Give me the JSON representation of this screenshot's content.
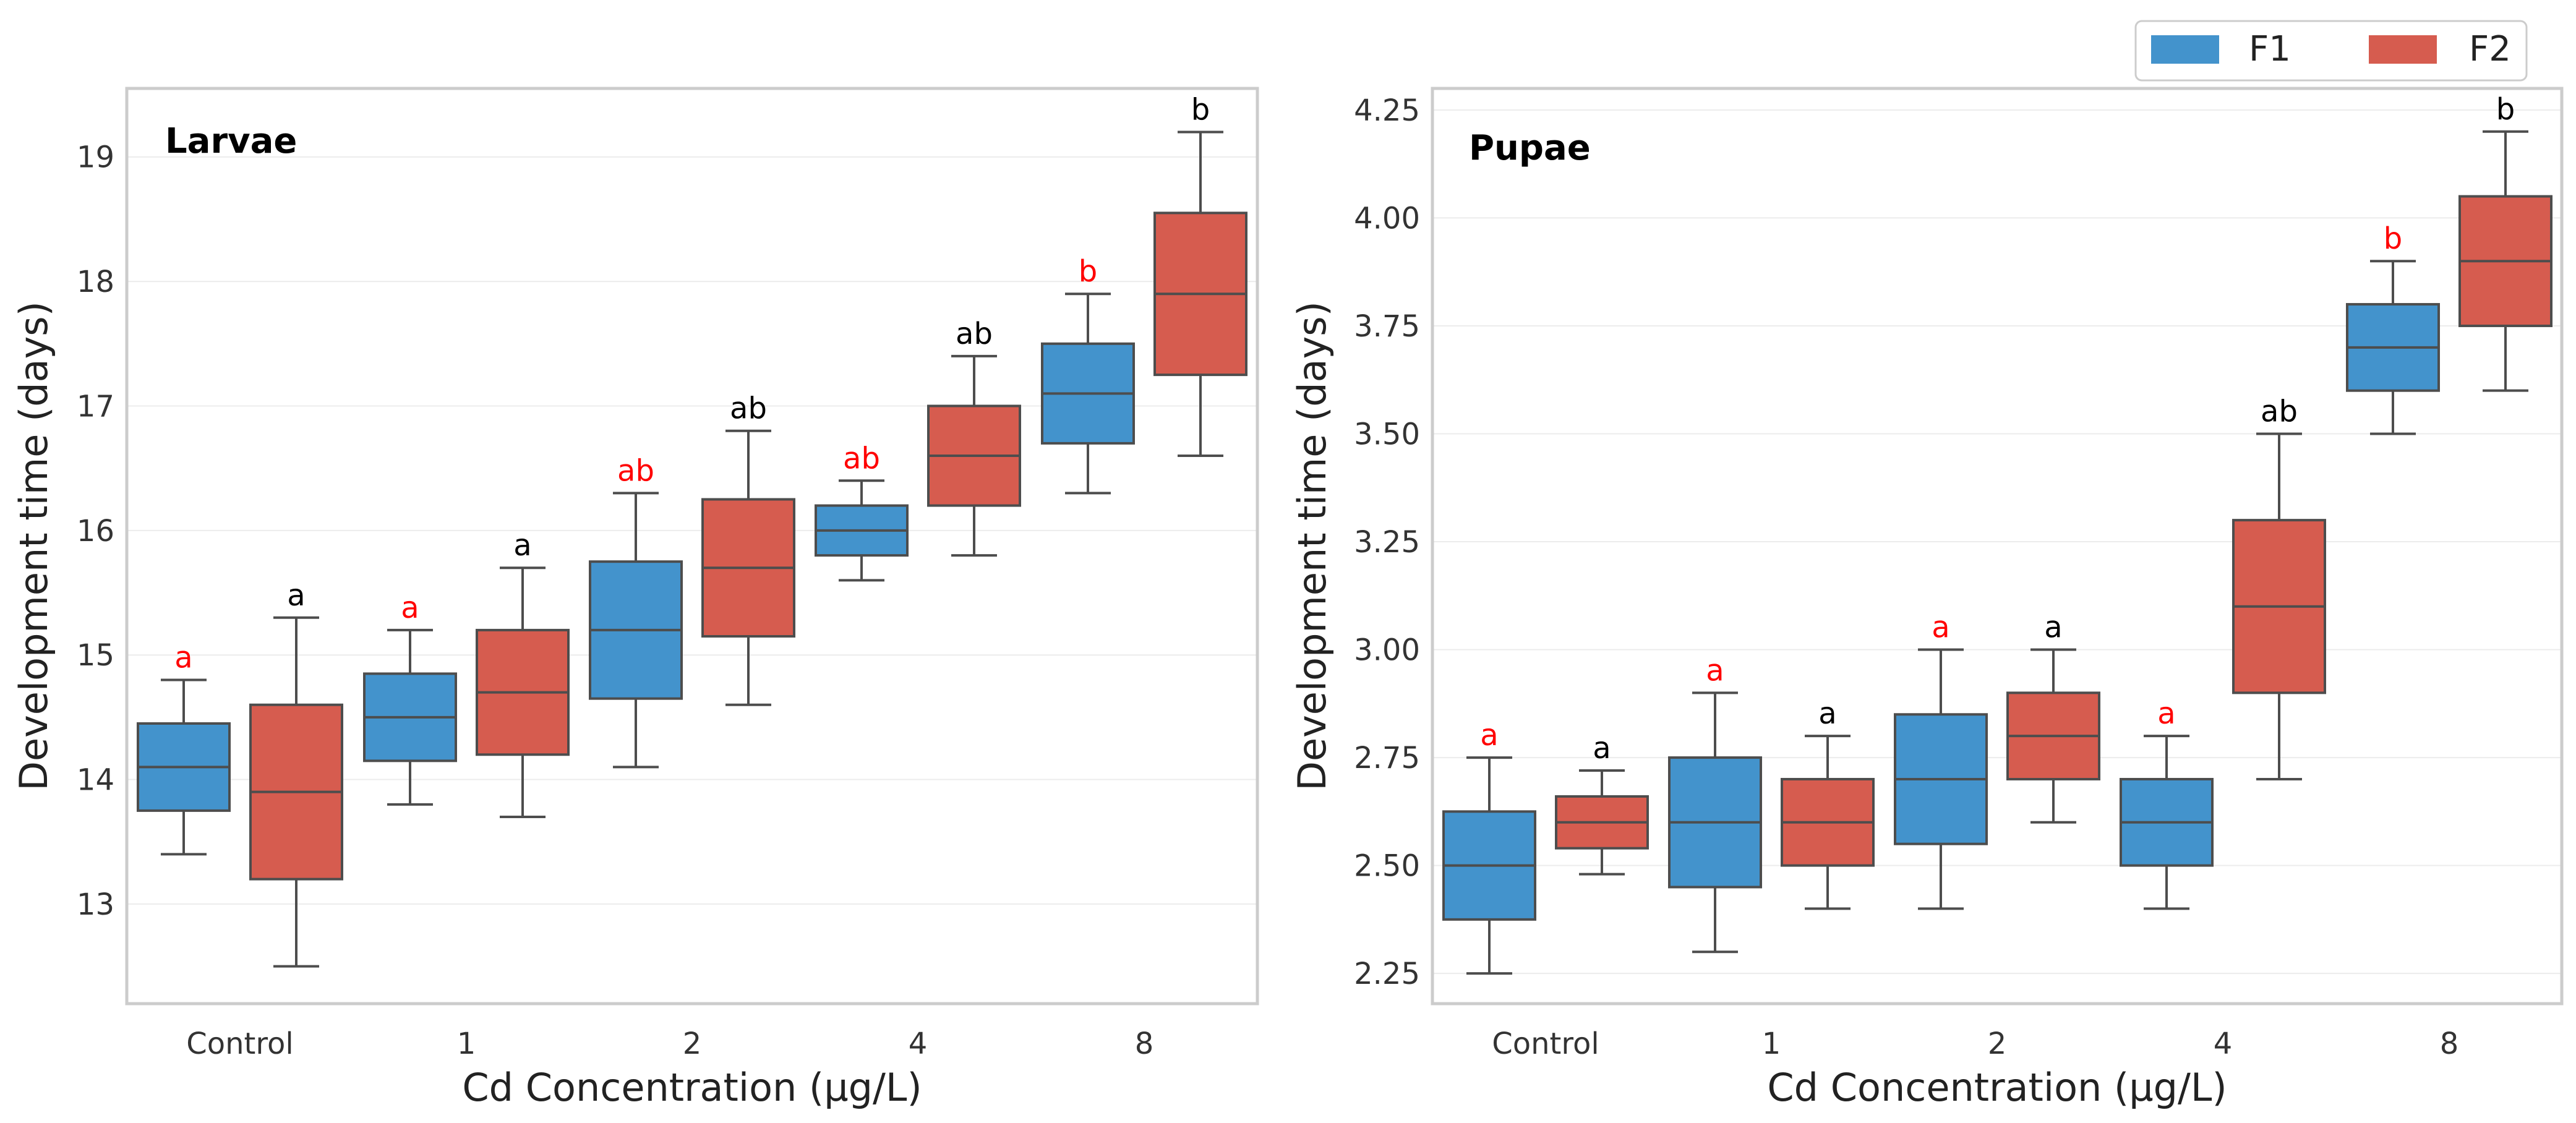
{
  "legend": {
    "position": "top-right",
    "entries": [
      {
        "name": "F1",
        "color": "#4393cc"
      },
      {
        "name": "F2",
        "color": "#d65c4f"
      }
    ]
  },
  "sig_colors": {
    "F1": "#ff0000",
    "F2": "#000000"
  },
  "box_edge_color": "#4d4d4d",
  "chart_data": [
    {
      "type": "box",
      "panel_title": "Larvae",
      "xlabel": "Cd Concentration (µg/L)",
      "ylabel": "Development time (days)",
      "categories": [
        "Control",
        "1",
        "2",
        "4",
        "8"
      ],
      "ylim": [
        12.2,
        19.55
      ],
      "yticks": [
        13,
        14,
        15,
        16,
        17,
        18,
        19
      ],
      "ytick_labels": [
        "13",
        "14",
        "15",
        "16",
        "17",
        "18",
        "19"
      ],
      "grid": true,
      "series": [
        {
          "name": "F1",
          "boxes": [
            {
              "low": 13.4,
              "q1": 13.75,
              "median": 14.1,
              "q3": 14.45,
              "high": 14.8,
              "letter": "a"
            },
            {
              "low": 13.8,
              "q1": 14.15,
              "median": 14.5,
              "q3": 14.85,
              "high": 15.2,
              "letter": "a"
            },
            {
              "low": 14.1,
              "q1": 14.65,
              "median": 15.2,
              "q3": 15.75,
              "high": 16.3,
              "letter": "ab"
            },
            {
              "low": 15.6,
              "q1": 15.8,
              "median": 16.0,
              "q3": 16.2,
              "high": 16.4,
              "letter": "ab"
            },
            {
              "low": 16.3,
              "q1": 16.7,
              "median": 17.1,
              "q3": 17.5,
              "high": 17.9,
              "letter": "b"
            }
          ]
        },
        {
          "name": "F2",
          "boxes": [
            {
              "low": 12.5,
              "q1": 13.2,
              "median": 13.9,
              "q3": 14.6,
              "high": 15.3,
              "letter": "a"
            },
            {
              "low": 13.7,
              "q1": 14.2,
              "median": 14.7,
              "q3": 15.2,
              "high": 15.7,
              "letter": "a"
            },
            {
              "low": 14.6,
              "q1": 15.15,
              "median": 15.7,
              "q3": 16.25,
              "high": 16.8,
              "letter": "ab"
            },
            {
              "low": 15.8,
              "q1": 16.2,
              "median": 16.6,
              "q3": 17.0,
              "high": 17.4,
              "letter": "ab"
            },
            {
              "low": 16.6,
              "q1": 17.25,
              "median": 17.9,
              "q3": 18.55,
              "high": 19.2,
              "letter": "b"
            }
          ]
        }
      ]
    },
    {
      "type": "box",
      "panel_title": "Pupae",
      "xlabel": "Cd Concentration (µg/L)",
      "ylabel": "Development time (days)",
      "categories": [
        "Control",
        "1",
        "2",
        "4",
        "8"
      ],
      "ylim": [
        2.18,
        4.3
      ],
      "yticks": [
        2.25,
        2.5,
        2.75,
        3.0,
        3.25,
        3.5,
        3.75,
        4.0,
        4.25
      ],
      "ytick_labels": [
        "2.25",
        "2.50",
        "2.75",
        "3.00",
        "3.25",
        "3.50",
        "3.75",
        "4.00",
        "4.25"
      ],
      "grid": true,
      "series": [
        {
          "name": "F1",
          "boxes": [
            {
              "low": 2.25,
              "q1": 2.375,
              "median": 2.5,
              "q3": 2.625,
              "high": 2.75,
              "letter": "a"
            },
            {
              "low": 2.3,
              "q1": 2.45,
              "median": 2.6,
              "q3": 2.75,
              "high": 2.9,
              "letter": "a"
            },
            {
              "low": 2.4,
              "q1": 2.55,
              "median": 2.7,
              "q3": 2.85,
              "high": 3.0,
              "letter": "a"
            },
            {
              "low": 2.4,
              "q1": 2.5,
              "median": 2.6,
              "q3": 2.7,
              "high": 2.8,
              "letter": "a"
            },
            {
              "low": 3.5,
              "q1": 3.6,
              "median": 3.7,
              "q3": 3.8,
              "high": 3.9,
              "letter": "b"
            }
          ]
        },
        {
          "name": "F2",
          "boxes": [
            {
              "low": 2.48,
              "q1": 2.54,
              "median": 2.6,
              "q3": 2.66,
              "high": 2.72,
              "letter": "a"
            },
            {
              "low": 2.4,
              "q1": 2.5,
              "median": 2.6,
              "q3": 2.7,
              "high": 2.8,
              "letter": "a"
            },
            {
              "low": 2.6,
              "q1": 2.7,
              "median": 2.8,
              "q3": 2.9,
              "high": 3.0,
              "letter": "a"
            },
            {
              "low": 2.7,
              "q1": 2.9,
              "median": 3.1,
              "q3": 3.3,
              "high": 3.5,
              "letter": "ab"
            },
            {
              "low": 3.6,
              "q1": 3.75,
              "median": 3.9,
              "q3": 4.05,
              "high": 4.2,
              "letter": "b"
            }
          ]
        }
      ]
    }
  ]
}
